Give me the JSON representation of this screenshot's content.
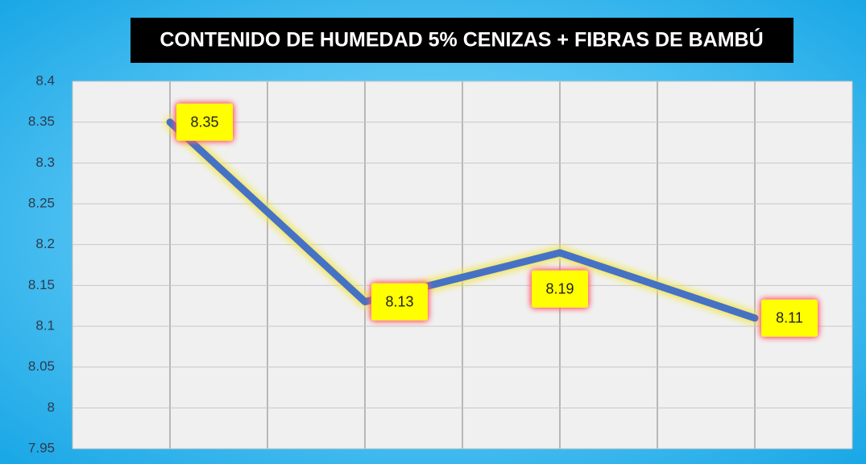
{
  "chart_data": {
    "type": "line",
    "title": "CONTENIDO DE HUMEDAD 5% CENIZAS + FIBRAS DE BAMBÚ",
    "categories": [
      null,
      null,
      null,
      null
    ],
    "series": [
      {
        "name": null,
        "color": "#4472c4",
        "values": [
          8.35,
          8.13,
          8.19,
          8.11
        ]
      }
    ],
    "ylim": [
      7.95,
      8.4
    ],
    "yticks": [
      7.95,
      8,
      8.05,
      8.1,
      8.15,
      8.2,
      8.25,
      8.3,
      8.35,
      8.4
    ],
    "grid": true
  }
}
